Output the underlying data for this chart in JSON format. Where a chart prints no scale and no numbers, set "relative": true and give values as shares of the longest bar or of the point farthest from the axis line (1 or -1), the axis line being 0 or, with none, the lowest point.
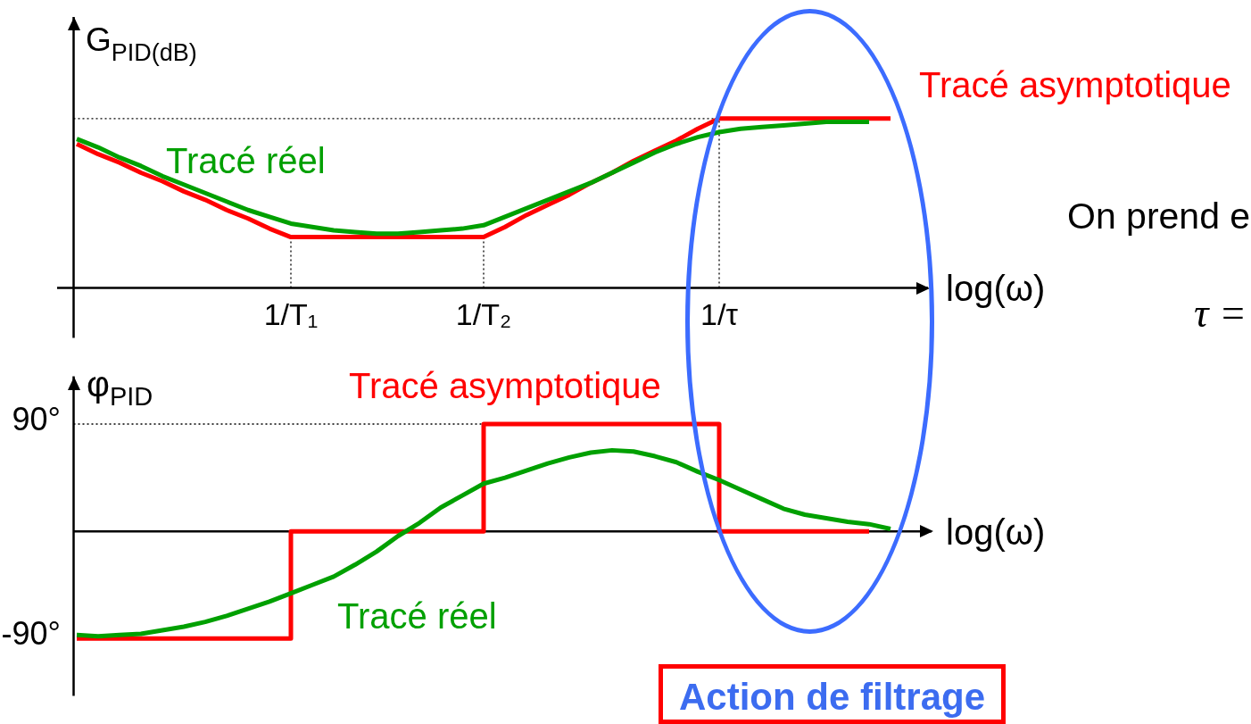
{
  "chart_data": [
    {
      "type": "line",
      "relative": true,
      "xlabel": "log(ω)",
      "ylabel": "G$_{PID(dB)}$",
      "categories": [
        null,
        null,
        null,
        null,
        null,
        null,
        null,
        null,
        null,
        null,
        "1/T₁",
        null,
        null,
        null,
        null,
        null,
        null,
        null,
        null,
        "1/T₂",
        null,
        null,
        null,
        null,
        null,
        null,
        null,
        null,
        null,
        null,
        "1/τ",
        null,
        null,
        null,
        null,
        null,
        null,
        null,
        null
      ],
      "series": [
        {
          "name": "Tracé asymptotique",
          "color": "#ff0000",
          "values": [
            0.85,
            0.79,
            0.74,
            0.68,
            0.63,
            0.57,
            0.52,
            0.46,
            0.41,
            0.35,
            0.3,
            0.3,
            0.3,
            0.3,
            0.3,
            0.3,
            0.3,
            0.3,
            0.3,
            0.3,
            0.36,
            0.43,
            0.49,
            0.55,
            0.62,
            0.68,
            0.75,
            0.81,
            0.87,
            0.94,
            1,
            1,
            1,
            1,
            1,
            1,
            1,
            1,
            1
          ]
        },
        {
          "name": "Tracé réel",
          "color": "#00a000",
          "values": [
            0.88,
            0.83,
            0.77,
            0.72,
            0.66,
            0.61,
            0.56,
            0.51,
            0.46,
            0.42,
            0.38,
            0.36,
            0.34,
            0.33,
            0.32,
            0.32,
            0.33,
            0.34,
            0.35,
            0.37,
            0.42,
            0.47,
            0.52,
            0.57,
            0.62,
            0.68,
            0.74,
            0.8,
            0.85,
            0.89,
            0.92,
            0.94,
            0.95,
            0.96,
            0.97,
            0.98,
            0.98,
            0.98,
            null
          ]
        }
      ],
      "ref_lines": [
        {
          "axis": "y",
          "value": 1,
          "color": "#000000",
          "line_style": "dotted"
        },
        {
          "axis": "x",
          "value": "1/T₁",
          "color": "#000000",
          "line_style": "dotted"
        },
        {
          "axis": "x",
          "value": "1/T₂",
          "color": "#000000",
          "line_style": "dotted"
        },
        {
          "axis": "x",
          "value": "1/τ",
          "color": "#000000",
          "line_style": "dotted"
        }
      ],
      "annotations": [
        "On prend e",
        "τ ="
      ]
    },
    {
      "type": "line",
      "xlabel": "log(ω)",
      "ylabel": "φ$_{PID}$",
      "categories": [
        null,
        null,
        null,
        null,
        null,
        null,
        null,
        null,
        null,
        null,
        null,
        null,
        null,
        null,
        null,
        null,
        null,
        null,
        null,
        null,
        null,
        null,
        null,
        null,
        null,
        null,
        null,
        null,
        null,
        null,
        null,
        null,
        null,
        null,
        null,
        null,
        null,
        null,
        null
      ],
      "ylim": [
        -138,
        130
      ],
      "yticks": [
        {
          "value": -90,
          "label": "-90°"
        },
        {
          "value": 90,
          "label": "90°"
        }
      ],
      "series": [
        {
          "name": "Tracé asymptotique",
          "type": "step",
          "color": "#ff0000",
          "values": [
            -90,
            -90,
            -90,
            -90,
            -90,
            -90,
            -90,
            -90,
            -90,
            -90,
            0,
            0,
            0,
            0,
            0,
            0,
            0,
            0,
            0,
            90,
            90,
            90,
            90,
            90,
            90,
            90,
            90,
            90,
            90,
            90,
            0,
            0,
            0,
            0,
            0,
            0,
            0,
            0,
            null
          ]
        },
        {
          "name": "Tracé réel",
          "color": "#00a000",
          "values": [
            -87,
            -88,
            -87,
            -86,
            -83,
            -80,
            -76,
            -71,
            -65,
            -59,
            -52,
            -45,
            -38,
            -28,
            -17,
            -4,
            7,
            20,
            30,
            40,
            45,
            51,
            57,
            62,
            66,
            68,
            67,
            63,
            58,
            50,
            43,
            35,
            27,
            19,
            14,
            11,
            8,
            6,
            2
          ]
        }
      ],
      "ref_lines": [
        {
          "axis": "y",
          "value": 90,
          "color": "#000000",
          "line_style": "dotted"
        }
      ],
      "annotations": [
        "Action de filtrage"
      ]
    }
  ]
}
